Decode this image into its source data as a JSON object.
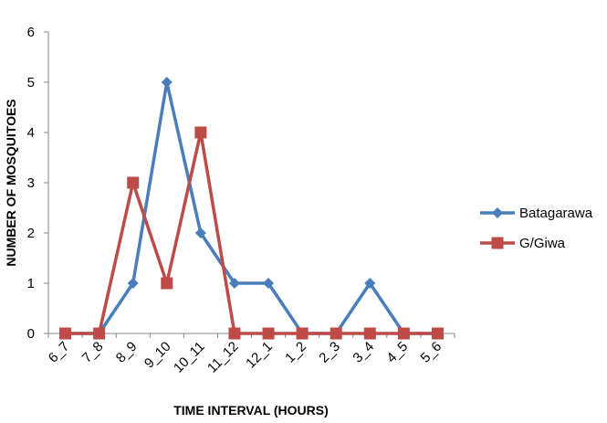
{
  "chart_data": {
    "type": "line",
    "categories": [
      "6_7",
      "7_8",
      "8_9",
      "9_10",
      "10_11",
      "11_12",
      "12_1",
      "1_2",
      "2_3",
      "3_4",
      "4_5",
      "5_6"
    ],
    "series": [
      {
        "name": "Batagarawa",
        "values": [
          0,
          0,
          1,
          5,
          2,
          1,
          1,
          0,
          0,
          1,
          0,
          0
        ],
        "color": "#4a7ebb",
        "marker": "diamond"
      },
      {
        "name": "G/Giwa",
        "values": [
          0,
          0,
          3,
          1,
          4,
          0,
          0,
          0,
          0,
          0,
          0,
          0
        ],
        "color": "#be4b48",
        "marker": "square"
      }
    ],
    "xlabel": "TIME INTERVAL (HOURS)",
    "ylabel": "NUMBER OF MOSQUITOES",
    "ylim": [
      0,
      6
    ],
    "yticks": [
      0,
      1,
      2,
      3,
      4,
      5,
      6
    ],
    "grid": false,
    "legend_position": "right"
  }
}
